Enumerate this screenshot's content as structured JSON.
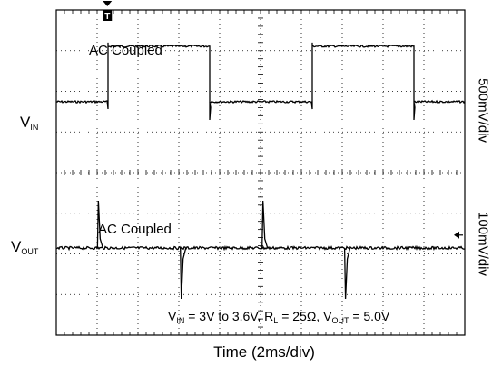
{
  "chart_data": {
    "type": "line",
    "x_division_label": "Time (2ms/div)",
    "divisions_x": 10,
    "divisions_y": 8,
    "series": [
      {
        "name_main": "V",
        "name_sub": "IN",
        "scale_label": "500mV/div",
        "coupling": "AC Coupled",
        "center_division": 2.25,
        "square_wave": {
          "amplitude_divisions": 1.7,
          "edges_div": [
            0.55,
            1.1,
            2.1,
            3.35,
            4.3,
            5.45,
            6.45,
            7.45,
            8.45,
            10
          ],
          "levels": [
            "low",
            "high",
            "high",
            "low",
            "high",
            "high",
            "low",
            "high",
            "low",
            "low"
          ]
        }
      },
      {
        "name_main": "V",
        "name_sub": "OUT",
        "scale_label": "100mV/div",
        "coupling": "AC Coupled",
        "center_division": 5.85,
        "spikes_div": [
          {
            "x": 1.03,
            "dir": "up"
          },
          {
            "x": 3.06,
            "dir": "down"
          },
          {
            "x": 5.06,
            "dir": "up"
          },
          {
            "x": 7.08,
            "dir": "down"
          }
        ]
      }
    ],
    "conditions": {
      "vin_main": "V",
      "vin_sub": "IN",
      "vin_text": " = 3V to 3.6V, R",
      "rl_sub": "L",
      "rl_text": " = 25Ω, V",
      "vout_sub": "OUT",
      "vout_text": " = 5.0V"
    },
    "colors": {
      "trace": "#000000",
      "grid": "#000000",
      "background": "#ffffff"
    },
    "trigger_marker": "T"
  }
}
